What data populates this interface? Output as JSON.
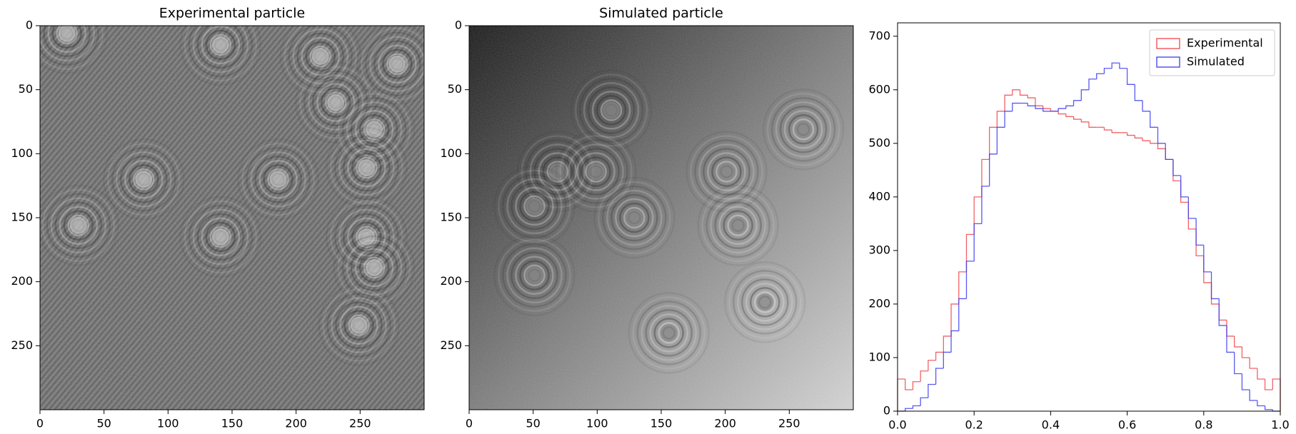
{
  "chart_data": [
    {
      "type": "image",
      "title": "Experimental particle",
      "style": "experimental",
      "xlim": [
        0,
        300
      ],
      "ylim": [
        300,
        0
      ],
      "xticks": [
        0,
        50,
        100,
        150,
        200,
        250
      ],
      "yticks": [
        0,
        50,
        100,
        150,
        200,
        250
      ]
    },
    {
      "type": "image",
      "title": "Simulated particle",
      "style": "simulated",
      "xlim": [
        0,
        300
      ],
      "ylim": [
        300,
        0
      ],
      "xticks": [
        0,
        50,
        100,
        150,
        200,
        250
      ],
      "yticks": [
        0,
        50,
        100,
        150,
        200,
        250
      ]
    },
    {
      "type": "histogram",
      "legend": "upper right",
      "xlim": [
        0,
        1
      ],
      "ylim": [
        0,
        725
      ],
      "xticks": [
        {
          "value": 0,
          "label": "0.0"
        },
        0.2,
        0.4,
        0.6,
        0.8,
        {
          "value": 1,
          "label": "1.0"
        }
      ],
      "yticks": [
        0,
        100,
        200,
        300,
        400,
        500,
        600,
        700
      ],
      "bins": [
        0,
        0.02,
        0.04,
        0.06,
        0.08,
        0.1,
        0.12,
        0.14,
        0.16,
        0.18,
        0.2,
        0.22,
        0.24,
        0.26,
        0.28,
        0.3,
        0.32,
        0.34,
        0.36,
        0.38,
        0.4,
        0.42,
        0.44,
        0.46,
        0.48,
        0.5,
        0.52,
        0.54,
        0.56,
        0.58,
        0.6,
        0.62,
        0.64,
        0.66,
        0.68,
        0.7,
        0.72,
        0.74,
        0.76,
        0.78,
        0.8,
        0.82,
        0.84,
        0.86,
        0.88,
        0.9,
        0.92,
        0.94,
        0.96,
        0.98,
        1
      ],
      "series": [
        {
          "name": "Experimental",
          "color": "#f0464b",
          "values": [
            60,
            40,
            55,
            75,
            95,
            110,
            140,
            200,
            260,
            330,
            400,
            470,
            530,
            560,
            590,
            600,
            590,
            585,
            570,
            565,
            560,
            555,
            550,
            545,
            540,
            530,
            530,
            525,
            520,
            520,
            515,
            510,
            505,
            500,
            490,
            470,
            430,
            390,
            340,
            290,
            240,
            200,
            170,
            140,
            120,
            100,
            80,
            60,
            40,
            60
          ]
        },
        {
          "name": "Simulated",
          "color": "#3c3cf0",
          "values": [
            0,
            5,
            10,
            25,
            50,
            80,
            110,
            150,
            210,
            280,
            350,
            420,
            480,
            530,
            560,
            575,
            575,
            570,
            565,
            560,
            560,
            565,
            570,
            580,
            600,
            620,
            630,
            640,
            650,
            640,
            610,
            580,
            560,
            530,
            500,
            470,
            440,
            400,
            360,
            310,
            260,
            210,
            160,
            110,
            70,
            40,
            20,
            10,
            3,
            0
          ]
        }
      ]
    }
  ]
}
